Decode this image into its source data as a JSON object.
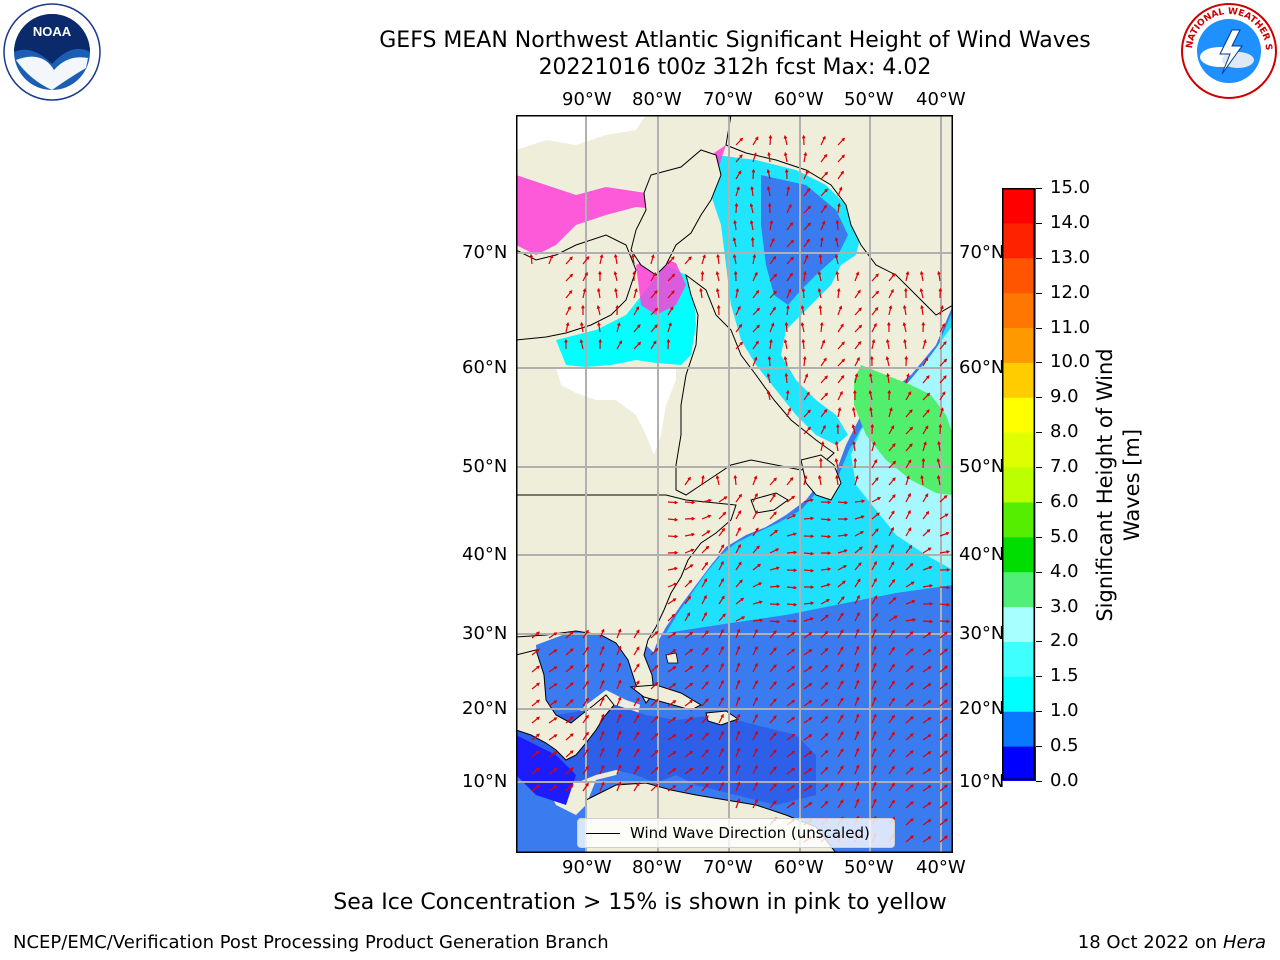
{
  "header": {
    "title_line1": "GEFS MEAN Northwest Atlantic Significant Height of Wind Waves",
    "title_line2": "20221016 t00z 312h fcst   Max: 4.02"
  },
  "logos": {
    "noaa_text": "NOAA",
    "nws_text": "NATIONAL WEATHER SERVICE"
  },
  "map": {
    "lon_labels": [
      "90°W",
      "80°W",
      "70°W",
      "60°W",
      "50°W",
      "40°W"
    ],
    "lat_labels": [
      "70°N",
      "60°N",
      "50°N",
      "40°N",
      "30°N",
      "20°N",
      "10°N"
    ],
    "legend_label": "Wind Wave Direction (unscaled)",
    "colors": {
      "land": "#efeedb",
      "ocean_low": "#1f78ff",
      "ocean_mid": "#00e8ff",
      "ocean_high": "#4cf06e",
      "ice": "#ff3fd8",
      "arrows": "#e00000"
    }
  },
  "colorbar": {
    "label": "Significant Height of Wind Waves [m]",
    "ticks": [
      "0.0",
      "0.5",
      "1.0",
      "1.5",
      "2.0",
      "3.0",
      "4.0",
      "5.0",
      "6.0",
      "7.0",
      "8.0",
      "9.0",
      "10.0",
      "11.0",
      "12.0",
      "13.0",
      "14.0",
      "15.0"
    ],
    "colors": [
      "#0000ff",
      "#0a78ff",
      "#00ffff",
      "#40ffff",
      "#a8ffff",
      "#50f078",
      "#00dd00",
      "#55ee00",
      "#bbff00",
      "#ddff00",
      "#ffff00",
      "#ffcc00",
      "#ff9900",
      "#ff7700",
      "#ff5500",
      "#ff2200",
      "#ff0000"
    ]
  },
  "note": "Sea Ice Concentration > 15% is shown in pink to yellow",
  "footer": {
    "left": "NCEP/EMC/Verification Post Processing Product Generation Branch",
    "right_prefix": "18 Oct 2022 on ",
    "right_machine": "Hera"
  }
}
